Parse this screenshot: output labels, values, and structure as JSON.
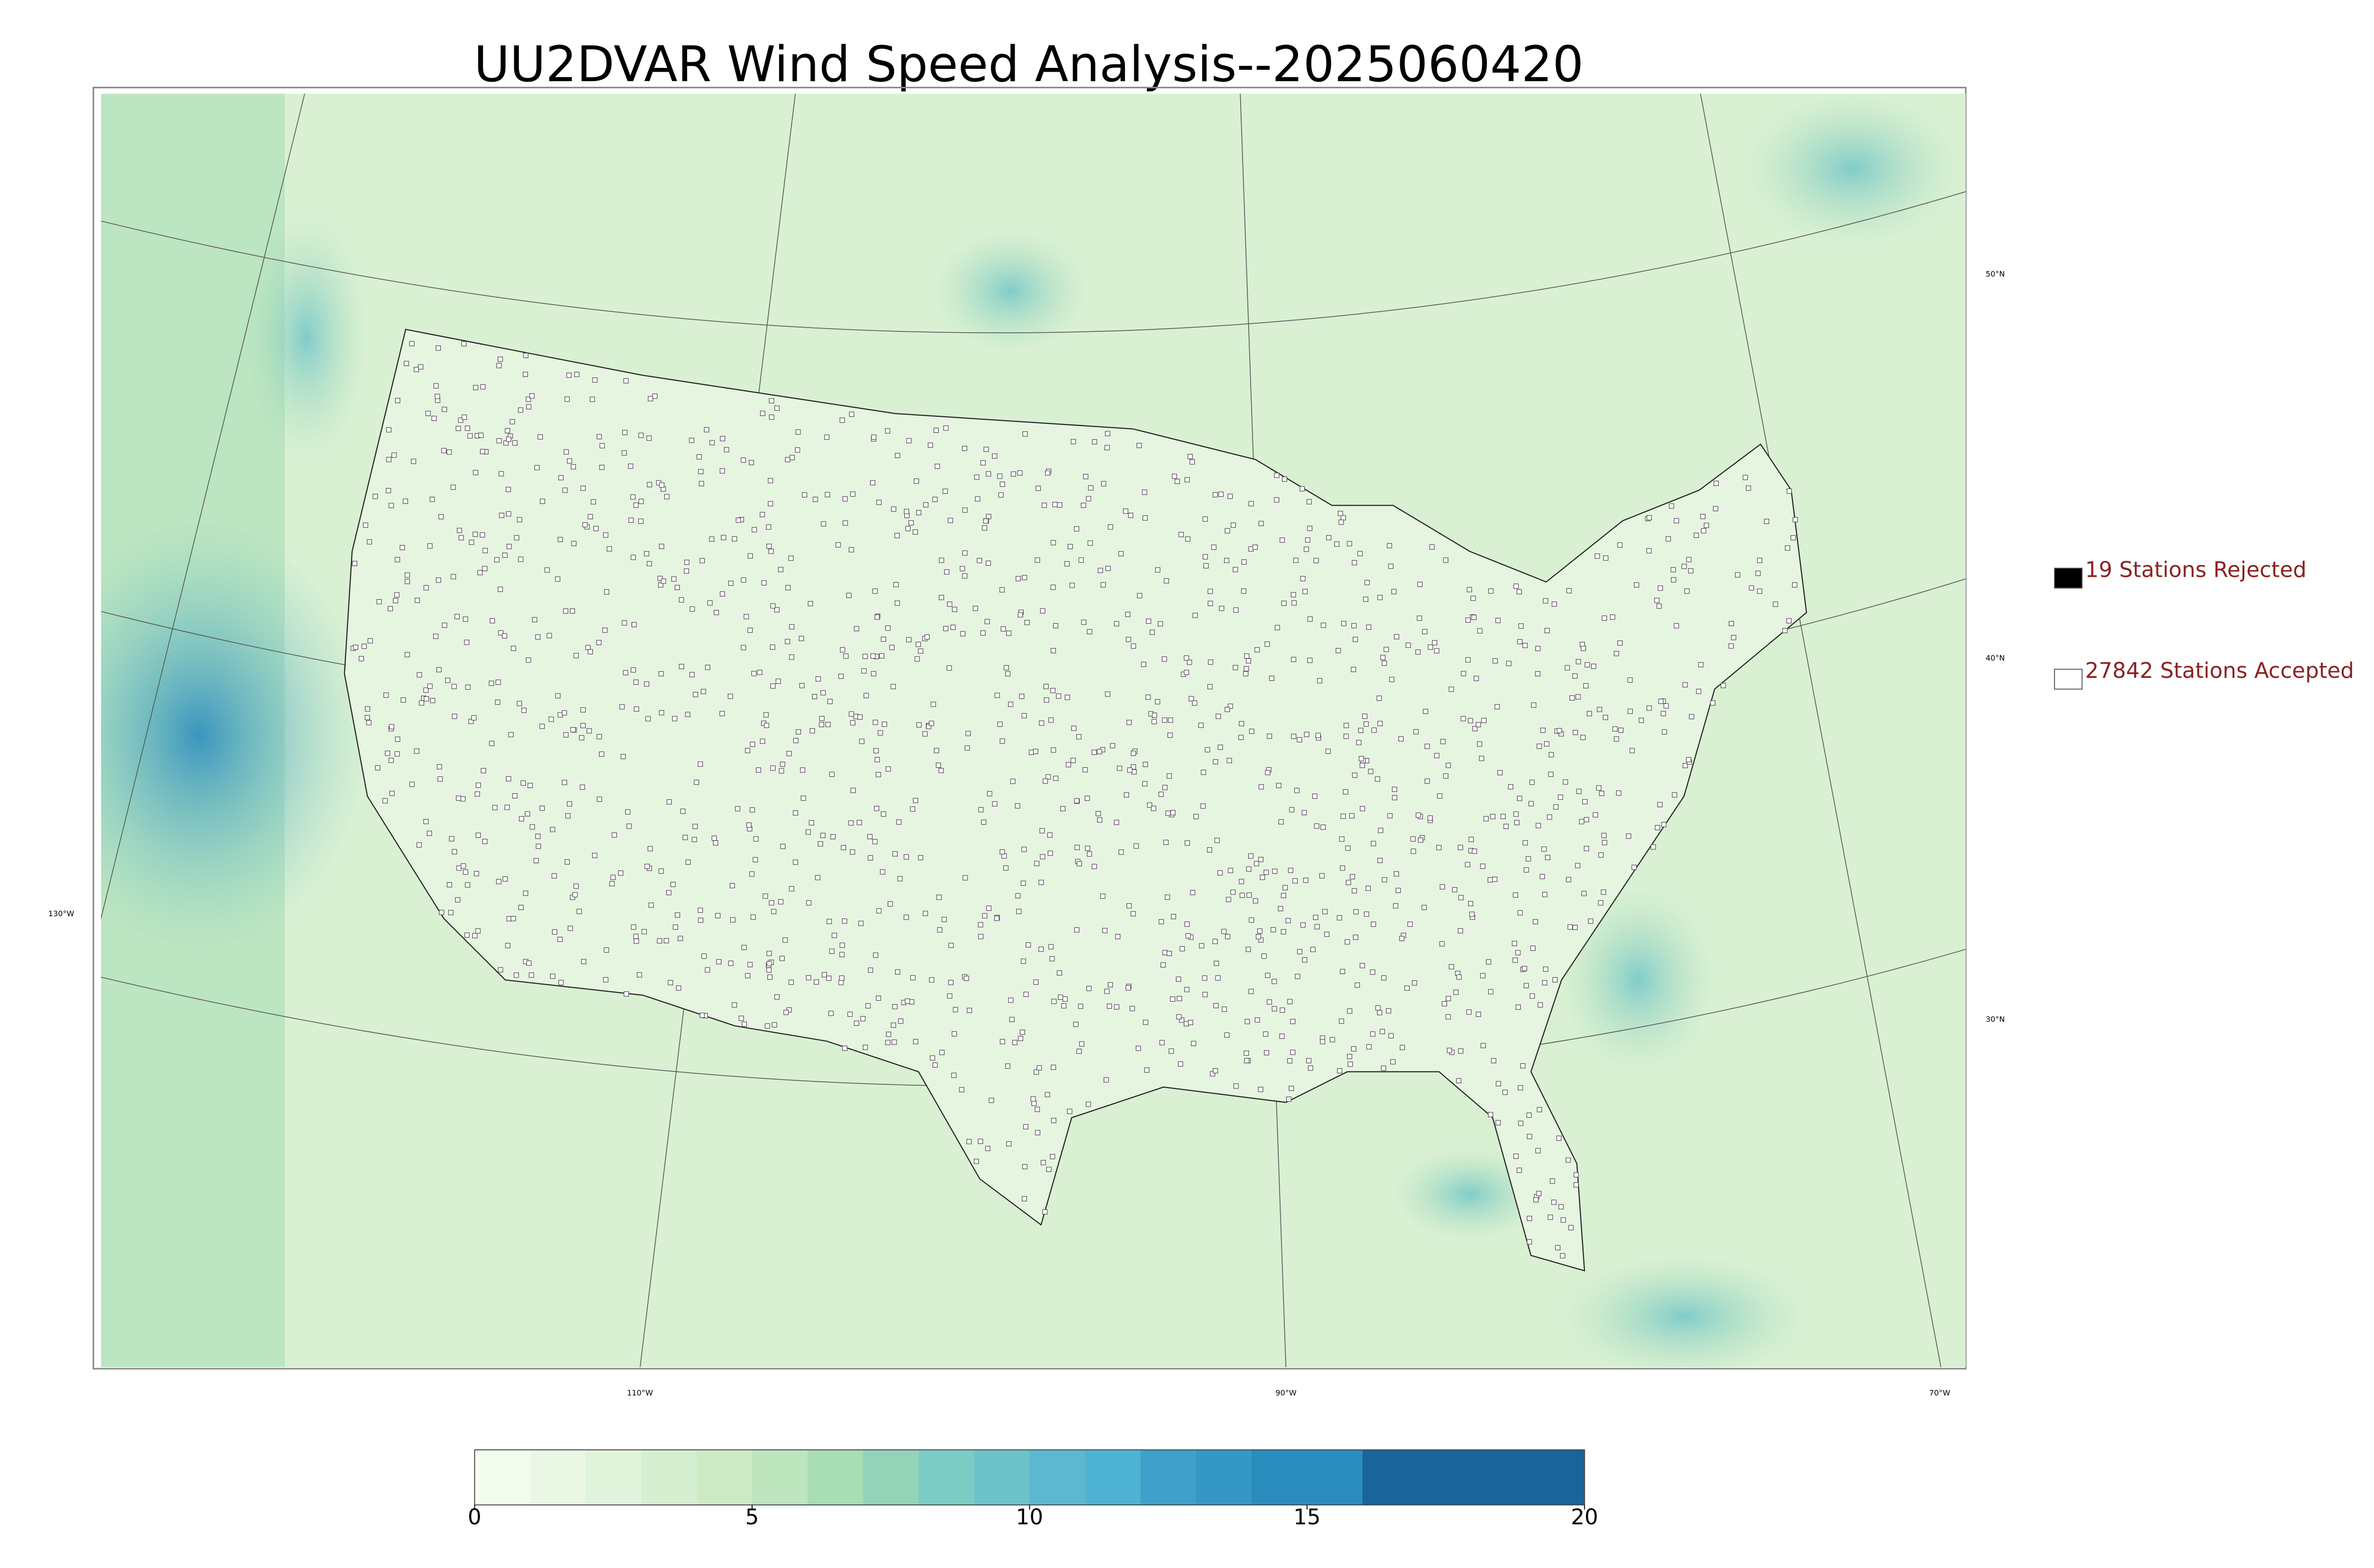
{
  "title": "UU2DVAR Wind Speed Analysis--2025060420",
  "legend": [
    {
      "label": "19 Stations Rejected",
      "fill": "#000000"
    },
    {
      "label": "27842 Stations Accepted",
      "fill": "none"
    }
  ],
  "legend_text_color": "#8b2323",
  "graticule": {
    "latitudes": [
      "50°N",
      "40°N",
      "30°N"
    ],
    "longitudes": [
      "130°W",
      "110°W",
      "90°W",
      "70°W"
    ]
  },
  "colorbar": {
    "range": [
      0,
      20
    ],
    "ticks": [
      0,
      5,
      10,
      15,
      20
    ],
    "levels": [
      0,
      1,
      2,
      3,
      4,
      5,
      6,
      7,
      8,
      9,
      10,
      11,
      12,
      13,
      14,
      16,
      20
    ],
    "colors": [
      "#f4fbef",
      "#eaf7e4",
      "#e0f3db",
      "#d6efd0",
      "#ccebc5",
      "#bde5be",
      "#a8ddb5",
      "#93d4b9",
      "#7bccc4",
      "#6bc3c9",
      "#5bb8cf",
      "#4eb3d3",
      "#3fa1cb",
      "#3597c6",
      "#2b8cbe",
      "#19649b"
    ]
  }
}
